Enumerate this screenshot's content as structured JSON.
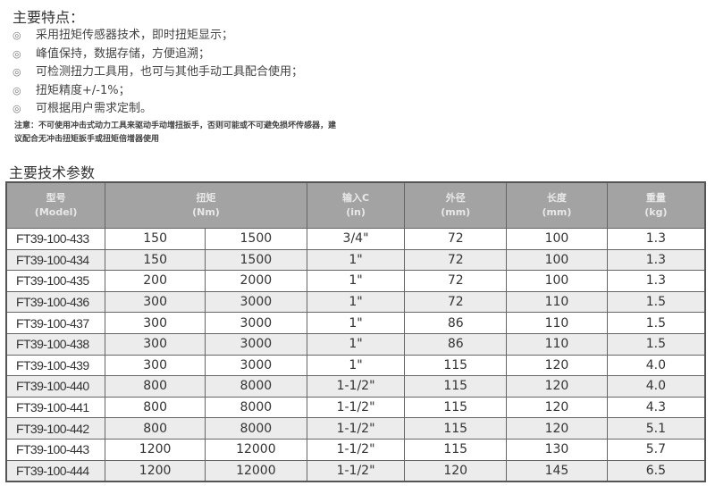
{
  "features": {
    "title": "主要特点：",
    "items": [
      "采用扭矩传感器技术，即时扭矩显示；",
      "峰值保持，数据存储，方便追溯；",
      "可检测扭力工具用，也可与其他手动工具配合使用；",
      "扭矩精度+/-1%；",
      "可根据用户需求定制。"
    ],
    "bullet": "◎",
    "note": "注意：不可使用冲击式动力工具来驱动手动增扭扳手，否则可能或不可避免损坏传感器，建议配合无冲击扭矩扳手或扭矩倍增器使用"
  },
  "specs": {
    "title": "主要技术参数",
    "headers": [
      {
        "name": "型号",
        "unit": "(Model)"
      },
      {
        "name": "扭矩",
        "unit": "(Nm)"
      },
      {
        "name": "输入C",
        "unit": "(in)"
      },
      {
        "name": "外径",
        "unit": "(mm)"
      },
      {
        "name": "长度",
        "unit": "(mm)"
      },
      {
        "name": "重量",
        "unit": "(kg)"
      }
    ],
    "rows": [
      [
        "FT39-100-433",
        "150",
        "1500",
        "3/4\"",
        "72",
        "100",
        "1.3"
      ],
      [
        "FT39-100-434",
        "150",
        "1500",
        "1\"",
        "72",
        "100",
        "1.3"
      ],
      [
        "FT39-100-435",
        "200",
        "2000",
        "1\"",
        "72",
        "100",
        "1.3"
      ],
      [
        "FT39-100-436",
        "300",
        "3000",
        "1\"",
        "72",
        "110",
        "1.5"
      ],
      [
        "FT39-100-437",
        "300",
        "3000",
        "1\"",
        "86",
        "110",
        "1.5"
      ],
      [
        "FT39-100-438",
        "300",
        "3000",
        "1\"",
        "86",
        "110",
        "1.5"
      ],
      [
        "FT39-100-439",
        "300",
        "3000",
        "1\"",
        "115",
        "120",
        "4.0"
      ],
      [
        "FT39-100-440",
        "800",
        "8000",
        "1-1/2\"",
        "115",
        "120",
        "4.0"
      ],
      [
        "FT39-100-441",
        "800",
        "8000",
        "1-1/2\"",
        "115",
        "120",
        "4.3"
      ],
      [
        "FT39-100-442",
        "800",
        "8000",
        "1-1/2\"",
        "115",
        "120",
        "5.1"
      ],
      [
        "FT39-100-443",
        "1200",
        "12000",
        "1-1/2\"",
        "115",
        "130",
        "5.7"
      ],
      [
        "FT39-100-444",
        "1200",
        "12000",
        "1-1/2\"",
        "120",
        "145",
        "6.5"
      ]
    ]
  }
}
